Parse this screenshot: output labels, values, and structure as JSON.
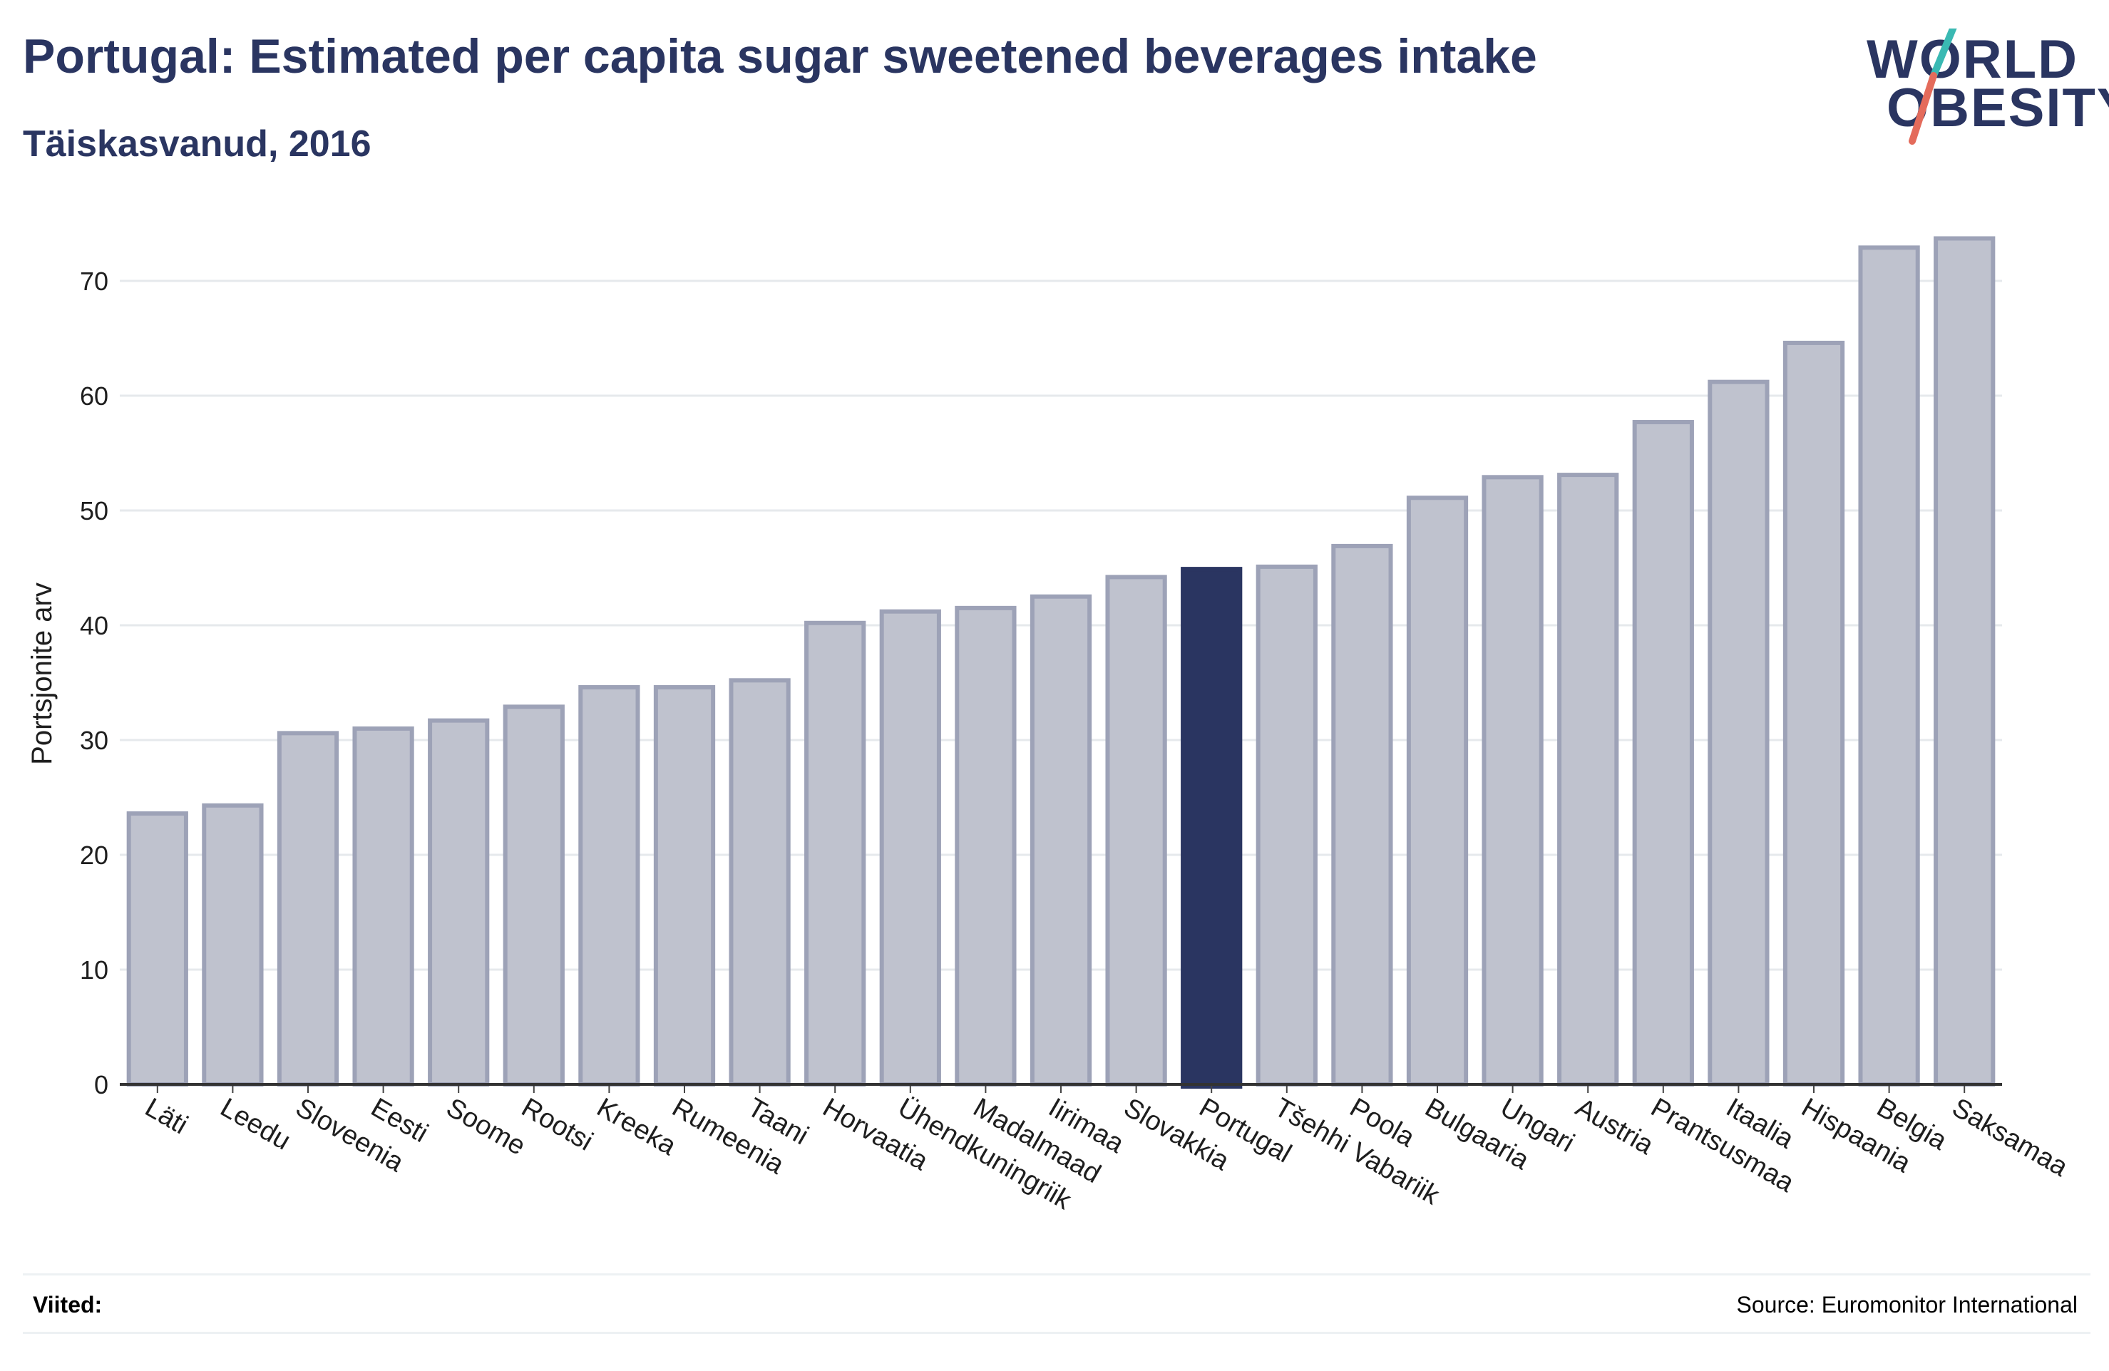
{
  "header": {
    "title": "Portugal: Estimated per capita sugar sweetened beverages intake",
    "subtitle": "Täiskasvanud, 2016"
  },
  "logo": {
    "line1": "WORLD",
    "line2": "OBESITY"
  },
  "footer": {
    "refs_label": "Viited:",
    "source": "Source: Euromonitor International"
  },
  "colors": {
    "bar_fill": "#bfc2ce",
    "bar_stroke": "#9da2b7",
    "highlight": "#2a3561",
    "text": "#2a3561",
    "grid": "#e6e9ec",
    "logo_teal": "#3ab9b3",
    "logo_coral": "#e46b5b"
  },
  "chart_data": {
    "type": "bar",
    "title": "Portugal: Estimated per capita sugar sweetened beverages intake",
    "subtitle": "Täiskasvanud, 2016",
    "xlabel": "",
    "ylabel": "Portsjonite arv",
    "ylim": [
      0,
      75
    ],
    "yticks": [
      0,
      10,
      20,
      30,
      40,
      50,
      60,
      70
    ],
    "grid": true,
    "highlight": "Portugal",
    "categories": [
      "Läti",
      "Leedu",
      "Sloveenia",
      "Eesti",
      "Soome",
      "Rootsi",
      "Kreeka",
      "Rumeenia",
      "Taani",
      "Horvaatia",
      "Ühendkuningriik",
      "Madalmaad",
      "Iirimaa",
      "Slovakkia",
      "Portugal",
      "Tšehhi Vabariik",
      "Poola",
      "Bulgaaria",
      "Ungari",
      "Austria",
      "Prantsusmaa",
      "Itaalia",
      "Hispaania",
      "Belgia",
      "Saksamaa"
    ],
    "values": [
      23.6,
      24.3,
      30.6,
      31.0,
      31.7,
      32.9,
      34.6,
      34.6,
      35.2,
      40.2,
      41.2,
      41.5,
      42.5,
      44.2,
      44.9,
      45.1,
      46.9,
      51.1,
      52.9,
      53.1,
      57.7,
      61.2,
      64.6,
      72.9,
      73.7
    ]
  }
}
